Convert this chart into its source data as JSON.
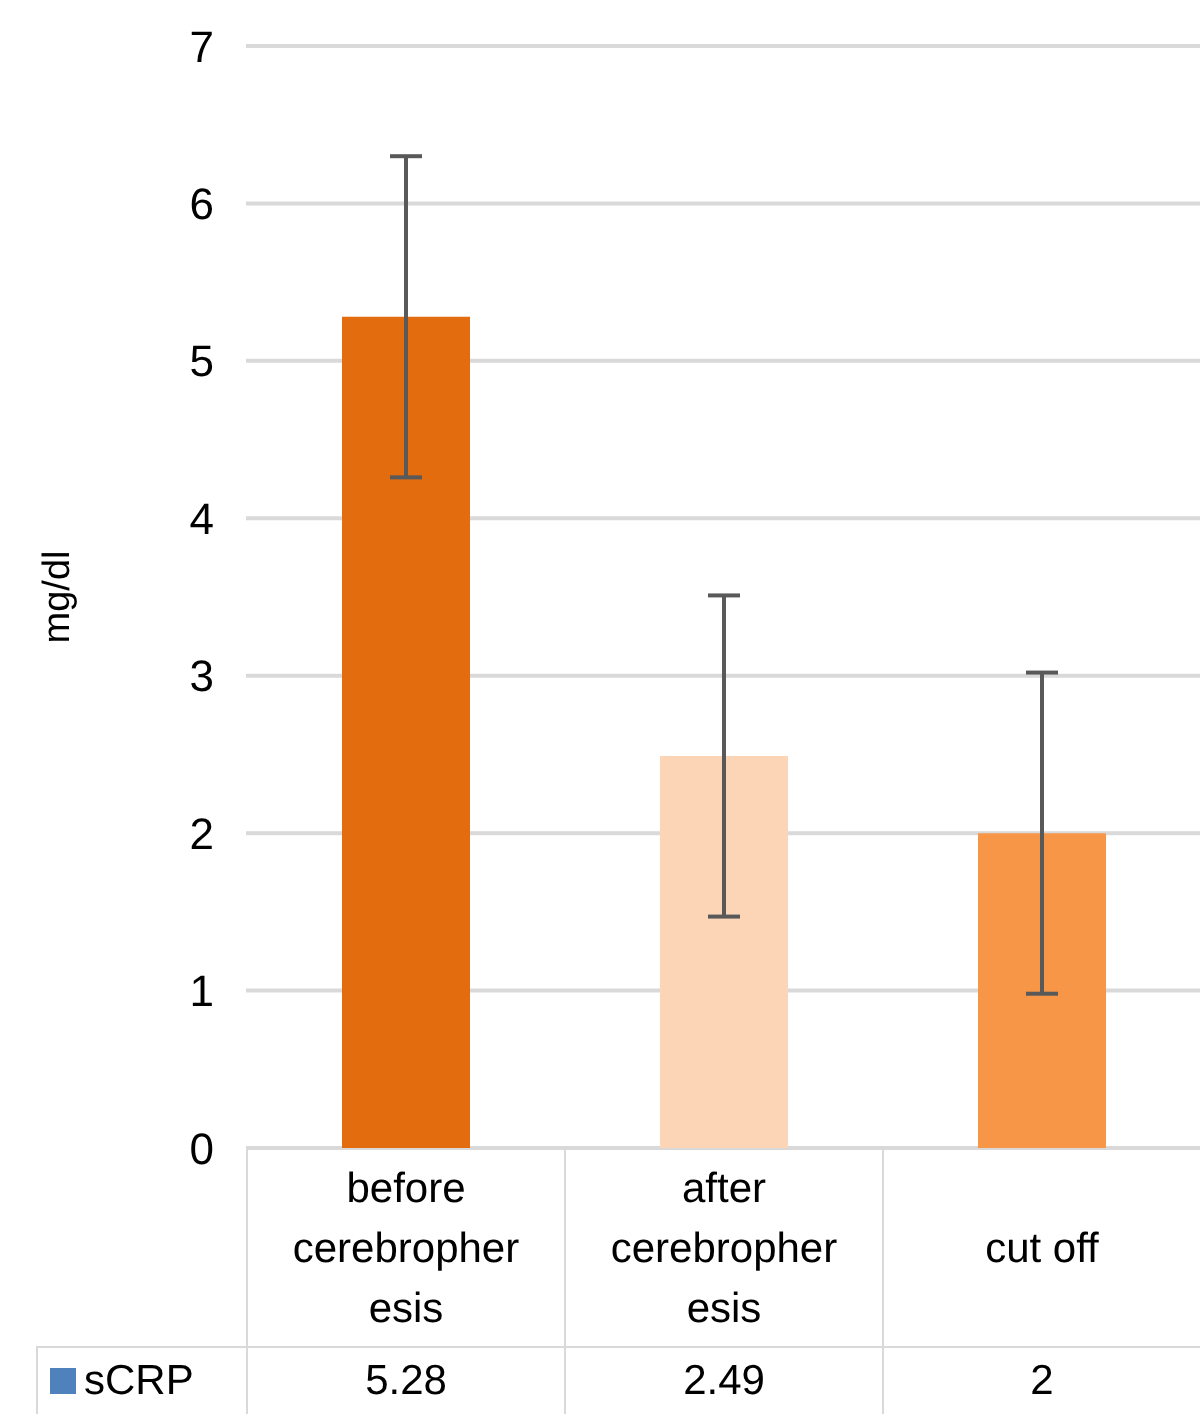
{
  "chart_data": {
    "type": "bar",
    "ylabel": "mg/dl",
    "categories": [
      "before cerebropheresis",
      "after cerebropheresis",
      "cut off"
    ],
    "series": [
      {
        "name": "sCRP",
        "color": "#4f81bd",
        "colors": [
          "#e36c0e",
          "#fbd5b5",
          "#f79646"
        ],
        "values": [
          5.28,
          2.49,
          2
        ],
        "errors": [
          1.02,
          1.02,
          1.02
        ]
      }
    ],
    "ylim": [
      0,
      7
    ],
    "yticks": [
      0,
      1,
      2,
      3,
      4,
      5,
      6,
      7
    ],
    "grid": "y",
    "data_labels": true,
    "legend": "bottom"
  }
}
